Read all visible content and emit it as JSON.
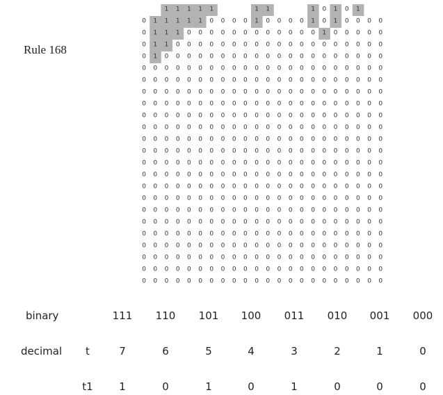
{
  "title": "Rule 168",
  "grid": {
    "cols": 22,
    "rows": 24,
    "first_row": [
      null,
      null,
      1,
      1,
      1,
      1,
      1,
      null,
      null,
      null,
      1,
      1,
      null,
      null,
      null,
      1,
      0,
      1,
      0,
      1,
      null,
      null
    ],
    "ones": [
      [
        1,
        1
      ],
      [
        1,
        2
      ],
      [
        1,
        3
      ],
      [
        1,
        4
      ],
      [
        1,
        5
      ],
      [
        1,
        10
      ],
      [
        1,
        15
      ],
      [
        1,
        17
      ],
      [
        2,
        1
      ],
      [
        2,
        2
      ],
      [
        2,
        3
      ],
      [
        2,
        16
      ],
      [
        3,
        1
      ],
      [
        3,
        2
      ],
      [
        4,
        1
      ]
    ]
  },
  "table": {
    "binary_label": "binary",
    "decimal_label": "decimal",
    "t_label": "t",
    "t1_label": "t1",
    "binary": [
      "111",
      "110",
      "101",
      "100",
      "011",
      "010",
      "001",
      "000"
    ],
    "t": [
      "7",
      "6",
      "5",
      "4",
      "3",
      "2",
      "1",
      "0"
    ],
    "t1": [
      "1",
      "0",
      "1",
      "0",
      "1",
      "0",
      "0",
      "0"
    ]
  },
  "colors": {
    "highlight": "#b3b3b3",
    "text": "#222222"
  }
}
